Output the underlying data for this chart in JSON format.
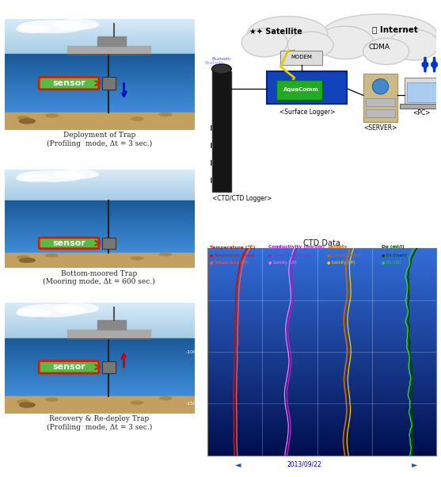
{
  "label_0": "Deployment of Trap\n(Profiling  mode, Δt = 3 sec.)",
  "label_1": "Bottom-moored Trap\n(Mooring mode, Δt = 600 sec.)",
  "label_2": "Recovery & Re-deploy Trap\n(Profiling  mode, Δt = 3 sec.)",
  "sensor_text": "sensor",
  "sensor_bg": "#55BB44",
  "sensor_edge": "#CC2200",
  "ctd_title": "CTD Data",
  "date_label": "2013/09/22",
  "internet_text": "Internet",
  "cdma_text": "CDMA",
  "satellite_text": "Satellite",
  "ctd_logger_text": "<CTD/CTD Logger>",
  "surface_logger_text": "<Surface Logger>",
  "server_text": "<SERVER>",
  "pc_text": "<PC>",
  "temp_header": "Temperature (℃)",
  "cond_header": "Conductivity (ms/cm)",
  "sal_header": "Salinity",
  "do_header": "Do (ml/l)",
  "temp_down_color": "#CC1100",
  "temp_up_color": "#FF5555",
  "cond_down_color": "#9922BB",
  "cond_up_color": "#FF77FF",
  "sal_down_color": "#CC6600",
  "sal_up_color": "#FFCC00",
  "do_down_color": "#004400",
  "do_up_color": "#33CC33",
  "floor_color": "#C4A060",
  "border_gray": "#999999"
}
